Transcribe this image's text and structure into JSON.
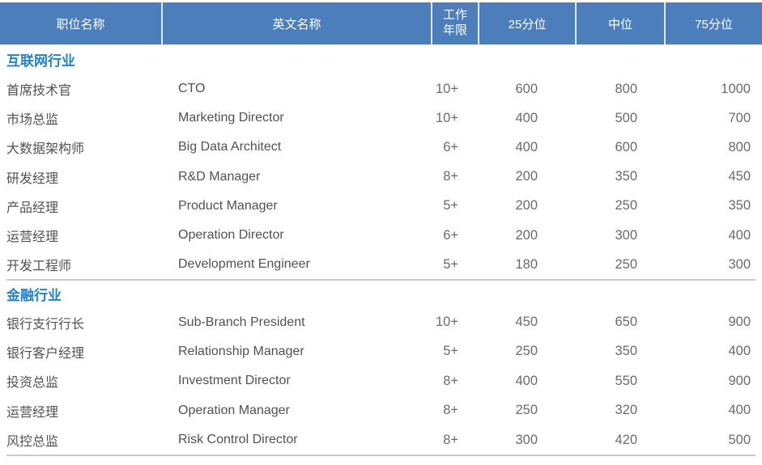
{
  "header": {
    "columns": [
      "职位名称",
      "英文名称",
      "工作\n年限",
      "25分位",
      "中位",
      "75分位"
    ]
  },
  "sections": [
    {
      "title": "互联网行业",
      "rows": [
        {
          "position": "首席技术官",
          "english": "CTO",
          "years": "10+",
          "p25": "600",
          "median": "800",
          "p75": "1000"
        },
        {
          "position": "市场总监",
          "english": "Marketing Director",
          "years": "10+",
          "p25": "400",
          "median": "500",
          "p75": "700"
        },
        {
          "position": "大数据架构师",
          "english": "Big Data Architect",
          "years": "6+",
          "p25": "400",
          "median": "600",
          "p75": "800"
        },
        {
          "position": "研发经理",
          "english": "R&D Manager",
          "years": "8+",
          "p25": "200",
          "median": "350",
          "p75": "450"
        },
        {
          "position": "产品经理",
          "english": "Product Manager",
          "years": "5+",
          "p25": "200",
          "median": "250",
          "p75": "350"
        },
        {
          "position": "运营经理",
          "english": "Operation Director",
          "years": "6+",
          "p25": "200",
          "median": "300",
          "p75": "400"
        },
        {
          "position": "开发工程师",
          "english": "Development Engineer",
          "years": "5+",
          "p25": "180",
          "median": "250",
          "p75": "300"
        }
      ]
    },
    {
      "title": "金融行业",
      "rows": [
        {
          "position": "银行支行行长",
          "english": "Sub-Branch President",
          "years": "10+",
          "p25": "450",
          "median": "650",
          "p75": "900"
        },
        {
          "position": "银行客户经理",
          "english": "Relationship Manager",
          "years": "5+",
          "p25": "250",
          "median": "350",
          "p75": "400"
        },
        {
          "position": "投资总监",
          "english": "Investment Director",
          "years": "8+",
          "p25": "400",
          "median": "550",
          "p75": "900"
        },
        {
          "position": "运营经理",
          "english": "Operation Manager",
          "years": "8+",
          "p25": "250",
          "median": "320",
          "p75": "400"
        },
        {
          "position": "风控总监",
          "english": "Risk Control Director",
          "years": "8+",
          "p25": "300",
          "median": "420",
          "p75": "500"
        }
      ]
    }
  ],
  "colors": {
    "header_bg": "#4d7ebc",
    "header_text": "#ffffff",
    "header_divider": "#dde8f4",
    "section_title": "#2382cb",
    "body_text": "#525252",
    "number_text": "#6b6b6b",
    "rule_line": "#c9c9c9"
  }
}
